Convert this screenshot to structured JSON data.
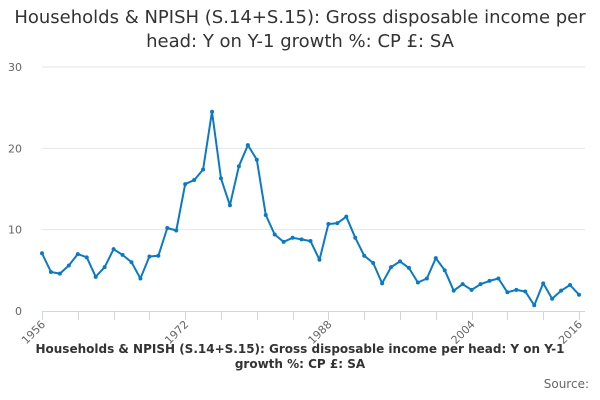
{
  "chart_data": {
    "type": "line",
    "title": "Households & NPISH (S.14+S.15): Gross disposable income per head: Y on Y-1 growth %: CP £: SA",
    "xlabel": "",
    "ylabel": "",
    "ylim": [
      0,
      30
    ],
    "yticks": [
      0,
      10,
      20,
      30
    ],
    "xlim": [
      1956,
      2016
    ],
    "xtick_labels": [
      1956,
      1972,
      1988,
      2004,
      2016
    ],
    "grid": true,
    "legend_position": "bottom",
    "color": "#0b7ac2",
    "series": [
      {
        "name": "Households & NPISH (S.14+S.15): Gross disposable income per head: Y on Y-1 growth %: CP £: SA",
        "x": [
          1956,
          1957,
          1958,
          1959,
          1960,
          1961,
          1962,
          1963,
          1964,
          1965,
          1966,
          1967,
          1968,
          1969,
          1970,
          1971,
          1972,
          1973,
          1974,
          1975,
          1976,
          1977,
          1978,
          1979,
          1980,
          1981,
          1982,
          1983,
          1984,
          1985,
          1986,
          1987,
          1988,
          1989,
          1990,
          1991,
          1992,
          1993,
          1994,
          1995,
          1996,
          1997,
          1998,
          1999,
          2000,
          2001,
          2002,
          2003,
          2004,
          2005,
          2006,
          2007,
          2008,
          2009,
          2010,
          2011,
          2012,
          2013,
          2014,
          2015,
          2016
        ],
        "values": [
          7.1,
          4.8,
          4.6,
          5.6,
          7.0,
          6.6,
          4.2,
          5.4,
          7.6,
          6.9,
          6.0,
          4.0,
          6.7,
          6.8,
          10.2,
          9.9,
          15.6,
          16.1,
          17.4,
          24.5,
          16.3,
          13.0,
          17.8,
          20.4,
          18.6,
          11.8,
          9.4,
          8.5,
          9.0,
          8.8,
          8.6,
          6.3,
          10.7,
          10.8,
          11.6,
          9.0,
          6.8,
          5.9,
          3.4,
          5.4,
          6.1,
          5.3,
          3.5,
          4.0,
          6.5,
          5.0,
          2.5,
          3.3,
          2.6,
          3.3,
          3.7,
          4.0,
          2.3,
          2.6,
          2.4,
          0.7,
          3.4,
          1.5,
          2.5,
          3.2,
          2.0
        ]
      }
    ],
    "source_label": "Source:"
  }
}
